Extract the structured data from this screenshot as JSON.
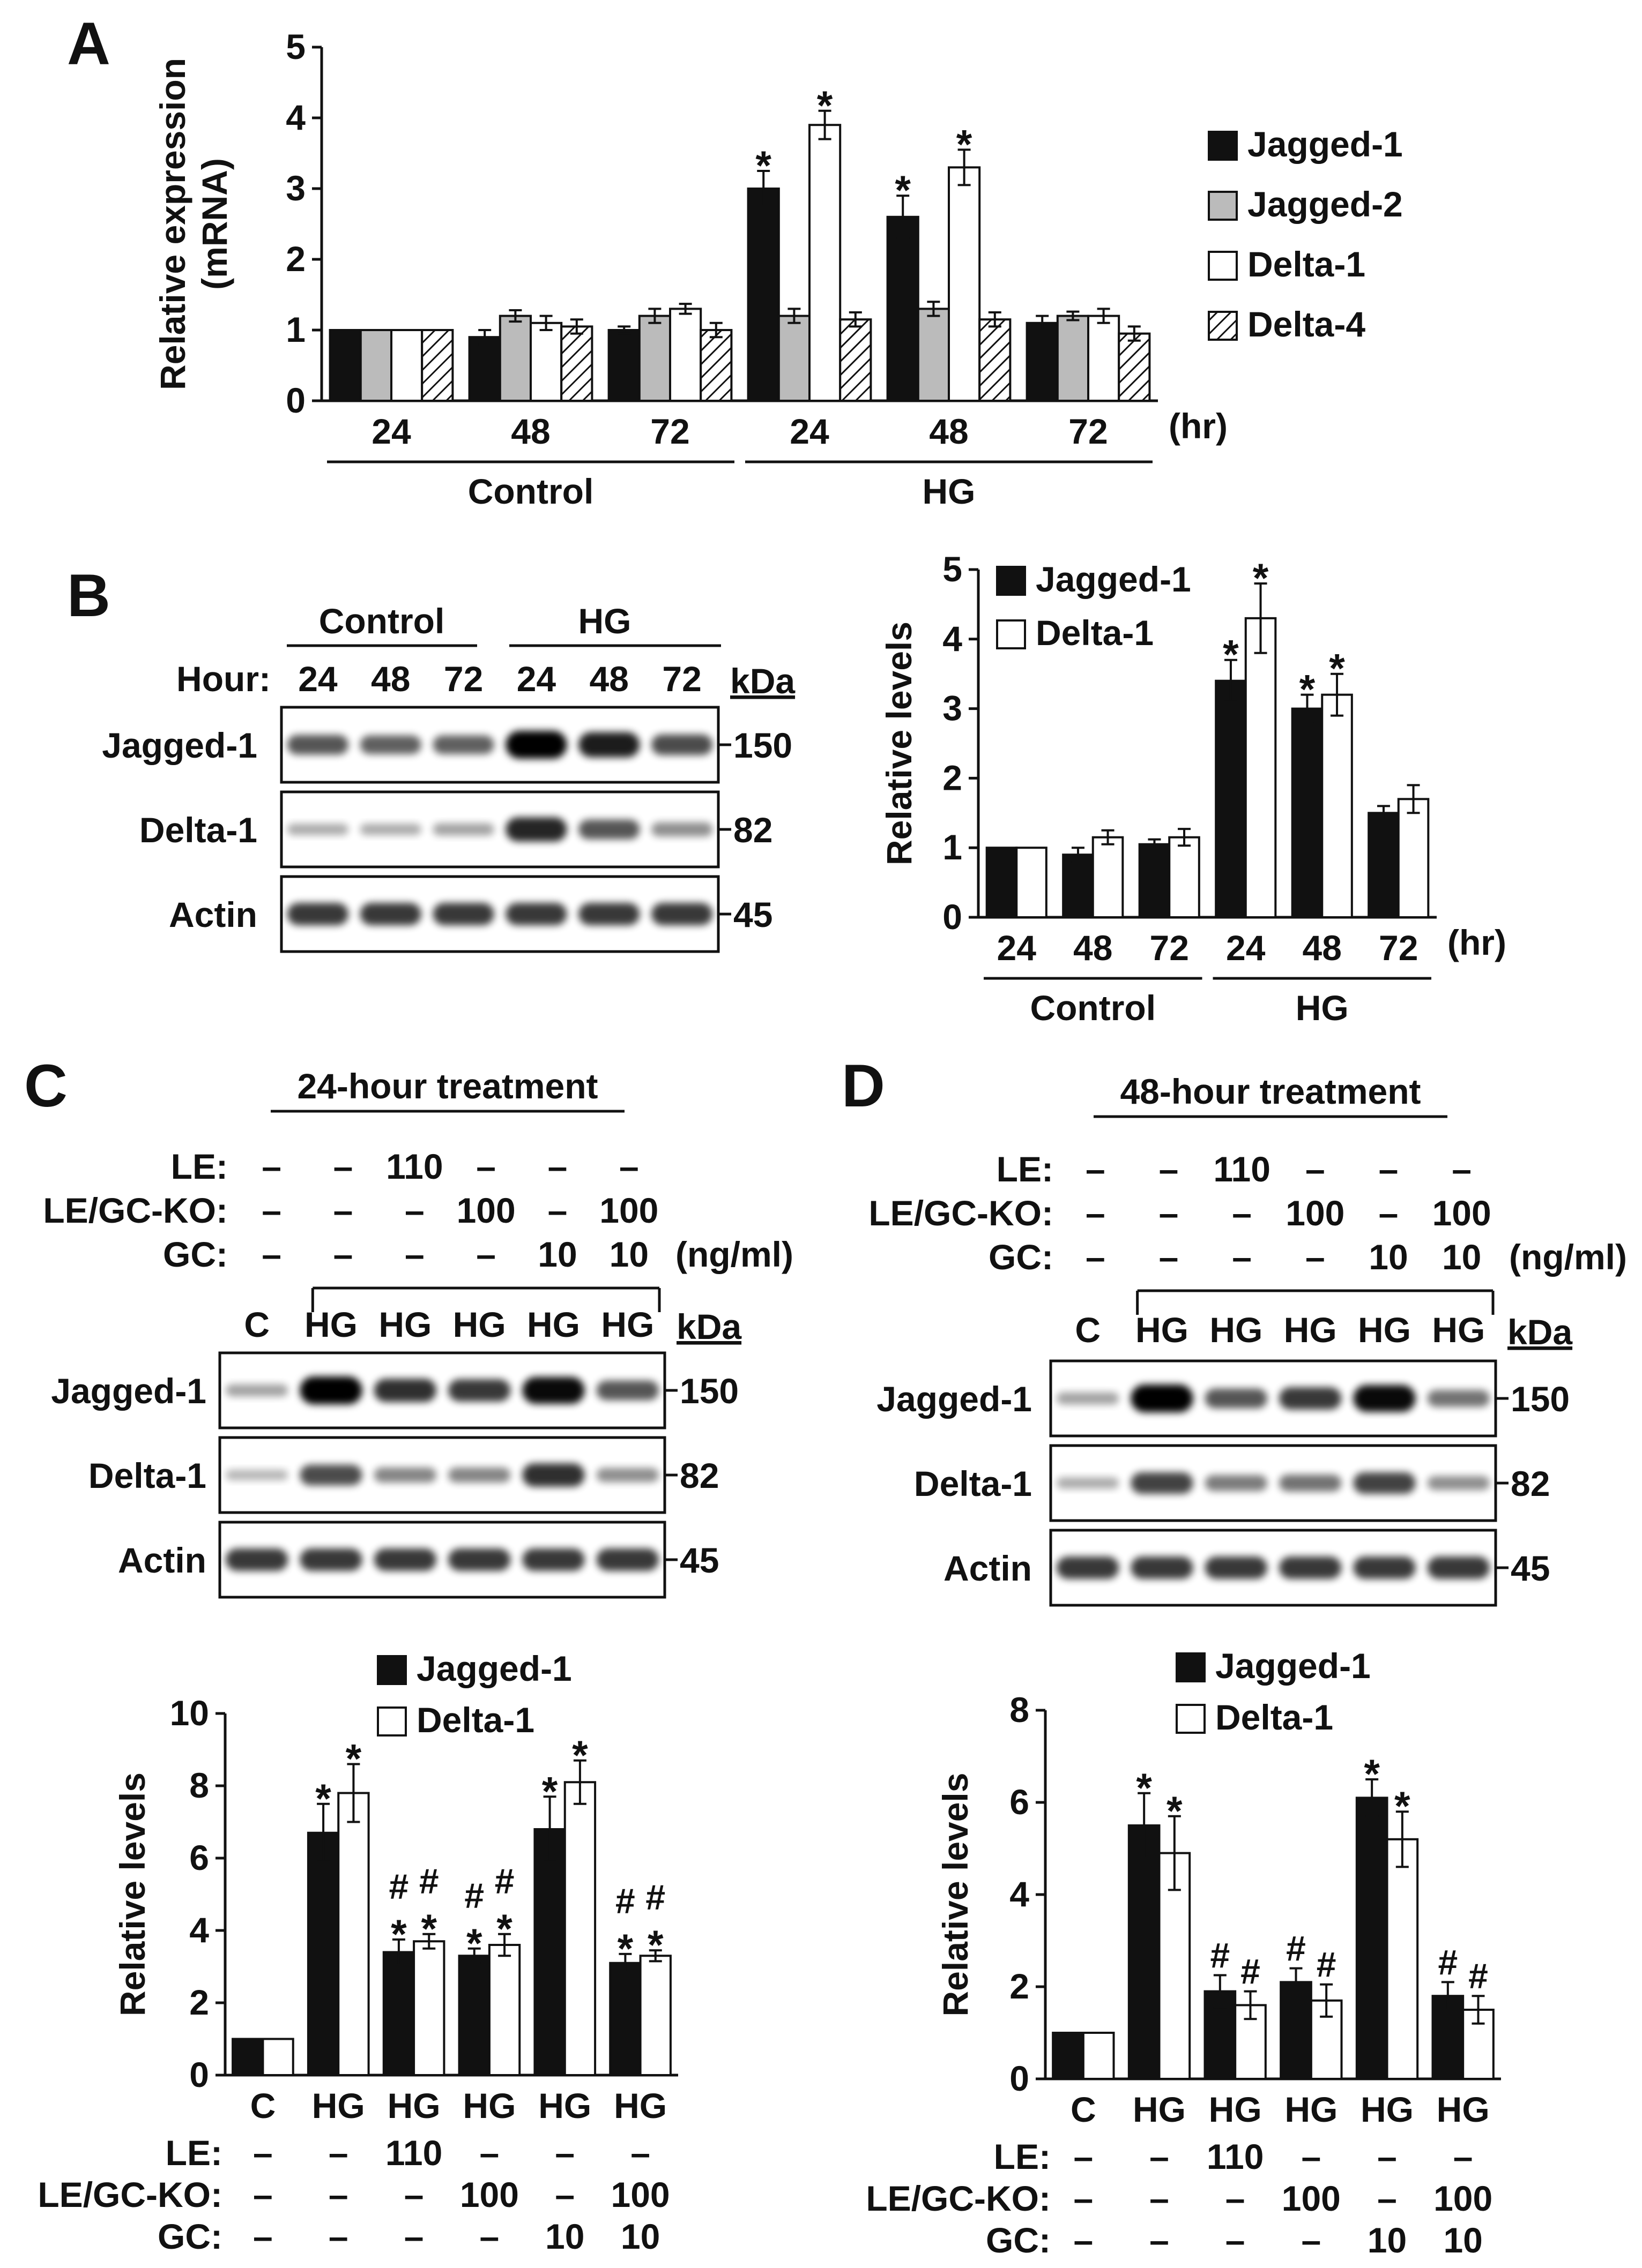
{
  "panels": {
    "A": "A",
    "B": "B",
    "C": "C",
    "D": "D"
  },
  "units": {
    "hr": "(hr)",
    "kda": "kDa",
    "ngml": "(ng/ml)",
    "hour": "Hour:"
  },
  "groups": {
    "control": "Control",
    "hg": "HG"
  },
  "colors": {
    "black": "#111111",
    "gray": "#bbbbbb",
    "white": "#ffffff",
    "hatch": "#111111"
  },
  "chart_data": [
    {
      "id": "A",
      "type": "bar",
      "title": "",
      "ylabel": "Relative expression (mRNA)",
      "ylabel_lines": [
        "Relative expression",
        "(mRNA)"
      ],
      "ylim": [
        0,
        5
      ],
      "yticks": [
        "0",
        "1",
        "2",
        "3",
        "4",
        "5"
      ],
      "categories": [
        "24",
        "48",
        "72",
        "24",
        "48",
        "72"
      ],
      "category_groups": [
        {
          "label": "Control",
          "span": [
            0,
            2
          ]
        },
        {
          "label": "HG",
          "span": [
            3,
            5
          ]
        }
      ],
      "xunit": "(hr)",
      "legend": "right",
      "series": [
        {
          "name": "Jagged-1",
          "fill": "black",
          "values": [
            1,
            0.9,
            1.0,
            3.0,
            2.6,
            1.1
          ],
          "err": [
            0,
            0.1,
            0.05,
            0.25,
            0.3,
            0.1
          ],
          "marks": [
            "",
            "",
            "",
            "*",
            "*",
            ""
          ]
        },
        {
          "name": "Jagged-2",
          "fill": "gray",
          "values": [
            1,
            1.2,
            1.2,
            1.2,
            1.3,
            1.2
          ],
          "err": [
            0,
            0.08,
            0.1,
            0.1,
            0.1,
            0.06
          ],
          "marks": [
            "",
            "",
            "",
            "",
            "",
            ""
          ]
        },
        {
          "name": "Delta-1",
          "fill": "white",
          "values": [
            1,
            1.1,
            1.3,
            3.9,
            3.3,
            1.2
          ],
          "err": [
            0,
            0.1,
            0.07,
            0.2,
            0.25,
            0.1
          ],
          "marks": [
            "",
            "",
            "",
            "*",
            "*",
            ""
          ]
        },
        {
          "name": "Delta-4",
          "fill": "hatch",
          "values": [
            1,
            1.05,
            1.0,
            1.15,
            1.15,
            0.95
          ],
          "err": [
            0,
            0.1,
            0.1,
            0.1,
            0.1,
            0.1
          ],
          "marks": [
            "",
            "",
            "",
            "",
            "",
            ""
          ]
        }
      ]
    },
    {
      "id": "B",
      "type": "bar",
      "ylabel": "Relative levels",
      "ylim": [
        0,
        5
      ],
      "yticks": [
        "0",
        "1",
        "2",
        "3",
        "4",
        "5"
      ],
      "categories": [
        "24",
        "48",
        "72",
        "24",
        "48",
        "72"
      ],
      "category_groups": [
        {
          "label": "Control",
          "span": [
            0,
            2
          ]
        },
        {
          "label": "HG",
          "span": [
            3,
            5
          ]
        }
      ],
      "xunit": "(hr)",
      "legend": "top-left",
      "series": [
        {
          "name": "Jagged-1",
          "fill": "black",
          "values": [
            1,
            0.9,
            1.05,
            3.4,
            3.0,
            1.5
          ],
          "err": [
            0,
            0.1,
            0.07,
            0.3,
            0.2,
            0.1
          ],
          "marks": [
            "",
            "",
            "",
            "*",
            "*",
            ""
          ]
        },
        {
          "name": "Delta-1",
          "fill": "white",
          "values": [
            1,
            1.15,
            1.15,
            4.3,
            3.2,
            1.7
          ],
          "err": [
            0,
            0.1,
            0.12,
            0.5,
            0.3,
            0.2
          ],
          "marks": [
            "",
            "",
            "",
            "*",
            "*",
            ""
          ]
        }
      ]
    },
    {
      "id": "C",
      "type": "bar",
      "ylabel": "Relative levels",
      "ylim": [
        0,
        10
      ],
      "yticks": [
        "0",
        "2",
        "4",
        "6",
        "8",
        "10"
      ],
      "categories": [
        "C",
        "HG",
        "HG",
        "HG",
        "HG",
        "HG"
      ],
      "treatments": [
        {
          "label": "LE:",
          "values": [
            "–",
            "–",
            "110",
            "–",
            "–",
            "–"
          ]
        },
        {
          "label": "LE/GC-KO:",
          "values": [
            "–",
            "–",
            "–",
            "100",
            "–",
            "100"
          ]
        },
        {
          "label": "GC:",
          "values": [
            "–",
            "–",
            "–",
            "–",
            "10",
            "10"
          ]
        }
      ],
      "legend": "top",
      "series": [
        {
          "name": "Jagged-1",
          "fill": "black",
          "values": [
            1,
            6.7,
            3.4,
            3.3,
            6.8,
            3.1
          ],
          "err": [
            0,
            0.8,
            0.35,
            0.2,
            0.9,
            0.25
          ],
          "marks": [
            "",
            "*",
            "#\n*",
            "#\n*",
            "*",
            "#\n*"
          ]
        },
        {
          "name": "Delta-1",
          "fill": "white",
          "values": [
            1,
            7.8,
            3.7,
            3.6,
            8.1,
            3.3
          ],
          "err": [
            0,
            0.8,
            0.2,
            0.3,
            0.6,
            0.15
          ],
          "marks": [
            "",
            "*",
            "#\n*",
            "#\n*",
            "*",
            "#\n*"
          ]
        }
      ]
    },
    {
      "id": "D",
      "type": "bar",
      "ylabel": "Relative levels",
      "ylim": [
        0,
        8
      ],
      "yticks": [
        "0",
        "2",
        "4",
        "6",
        "8"
      ],
      "categories": [
        "C",
        "HG",
        "HG",
        "HG",
        "HG",
        "HG"
      ],
      "treatments": [
        {
          "label": "LE:",
          "values": [
            "–",
            "–",
            "110",
            "–",
            "–",
            "–"
          ]
        },
        {
          "label": "LE/GC-KO:",
          "values": [
            "–",
            "–",
            "–",
            "100",
            "–",
            "100"
          ]
        },
        {
          "label": "GC:",
          "values": [
            "–",
            "–",
            "–",
            "–",
            "10",
            "10"
          ]
        }
      ],
      "legend": "top",
      "series": [
        {
          "name": "Jagged-1",
          "fill": "black",
          "values": [
            1,
            5.5,
            1.9,
            2.1,
            6.1,
            1.8
          ],
          "err": [
            0,
            0.7,
            0.35,
            0.3,
            0.4,
            0.3
          ],
          "marks": [
            "",
            "*",
            "#",
            "#",
            "*",
            "#"
          ]
        },
        {
          "name": "Delta-1",
          "fill": "white",
          "values": [
            1,
            4.9,
            1.6,
            1.7,
            5.2,
            1.5
          ],
          "err": [
            0,
            0.8,
            0.3,
            0.35,
            0.6,
            0.3
          ],
          "marks": [
            "",
            "*",
            "#",
            "#",
            "*",
            "#"
          ]
        }
      ]
    }
  ],
  "blots": {
    "B": {
      "header": "Hour:",
      "groups": [
        "Control",
        "HG"
      ],
      "lanes": [
        "24",
        "48",
        "72",
        "24",
        "48",
        "72"
      ],
      "rows": [
        {
          "label": "Jagged-1",
          "kda": "150",
          "intensity": [
            0.55,
            0.5,
            0.5,
            1.0,
            0.85,
            0.6
          ]
        },
        {
          "label": "Delta-1",
          "kda": "82",
          "intensity": [
            0.1,
            0.1,
            0.15,
            0.8,
            0.55,
            0.25
          ]
        },
        {
          "label": "Actin",
          "kda": "45",
          "intensity": [
            0.7,
            0.7,
            0.7,
            0.7,
            0.7,
            0.7
          ]
        }
      ]
    },
    "C": {
      "title": "24-hour treatment",
      "lanes": [
        "C",
        "HG",
        "HG",
        "HG",
        "HG",
        "HG"
      ],
      "treatments": [
        {
          "label": "LE:",
          "values": [
            "–",
            "–",
            "110",
            "–",
            "–",
            "–"
          ]
        },
        {
          "label": "LE/GC-KO:",
          "values": [
            "–",
            "–",
            "–",
            "100",
            "–",
            "100"
          ]
        },
        {
          "label": "GC:",
          "values": [
            "–",
            "–",
            "–",
            "–",
            "10",
            "10"
          ]
        }
      ],
      "rows": [
        {
          "label": "Jagged-1",
          "kda": "150",
          "intensity": [
            0.15,
            1.0,
            0.75,
            0.7,
            0.95,
            0.55
          ]
        },
        {
          "label": "Delta-1",
          "kda": "82",
          "intensity": [
            0.05,
            0.6,
            0.3,
            0.3,
            0.75,
            0.25
          ]
        },
        {
          "label": "Actin",
          "kda": "45",
          "intensity": [
            0.7,
            0.7,
            0.7,
            0.7,
            0.7,
            0.7
          ]
        }
      ]
    },
    "D": {
      "title": "48-hour treatment",
      "lanes": [
        "C",
        "HG",
        "HG",
        "HG",
        "HG",
        "HG"
      ],
      "treatments": [
        {
          "label": "LE:",
          "values": [
            "–",
            "–",
            "110",
            "–",
            "–",
            "–"
          ]
        },
        {
          "label": "LE/GC-KO:",
          "values": [
            "–",
            "–",
            "–",
            "100",
            "–",
            "100"
          ]
        },
        {
          "label": "GC:",
          "values": [
            "–",
            "–",
            "–",
            "–",
            "10",
            "10"
          ]
        }
      ],
      "rows": [
        {
          "label": "Jagged-1",
          "kda": "150",
          "intensity": [
            0.15,
            1.0,
            0.55,
            0.7,
            0.95,
            0.4
          ]
        },
        {
          "label": "Delta-1",
          "kda": "82",
          "intensity": [
            0.1,
            0.65,
            0.35,
            0.4,
            0.65,
            0.25
          ]
        },
        {
          "label": "Actin",
          "kda": "45",
          "intensity": [
            0.7,
            0.7,
            0.7,
            0.7,
            0.7,
            0.7
          ]
        }
      ]
    }
  }
}
